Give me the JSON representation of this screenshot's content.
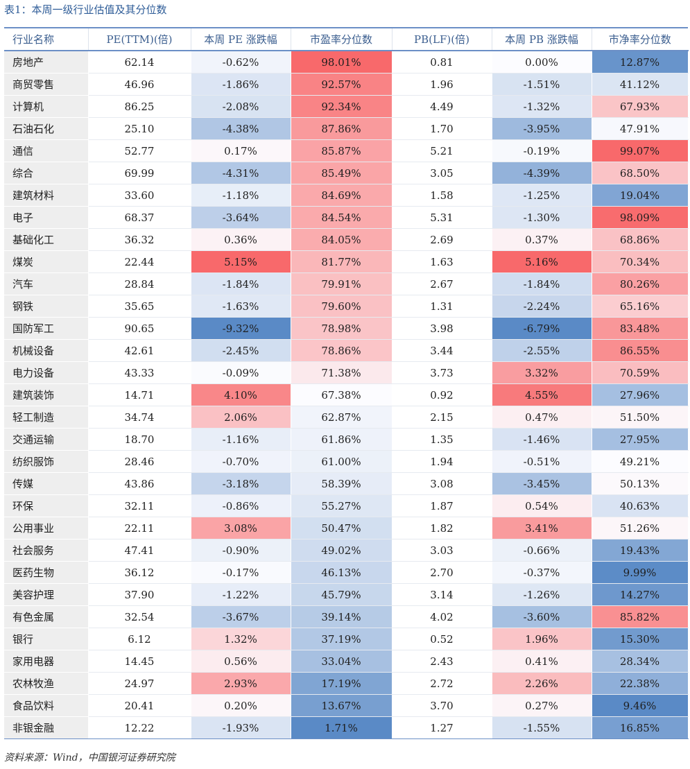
{
  "caption": "表1：本周一级行业估值及其分位数",
  "columns": [
    "行业名称",
    "PE(TTM)(倍)",
    "本周 PE 涨跌幅",
    "市盈率分位数",
    "PB(LF)(倍)",
    "本周 PB 涨跌幅",
    "市净率分位数"
  ],
  "rows": [
    [
      "房地产",
      "62.14",
      "-0.62%",
      "98.01%",
      "0.81",
      "0.00%",
      "12.87%"
    ],
    [
      "商贸零售",
      "46.96",
      "-1.86%",
      "92.57%",
      "1.96",
      "-1.51%",
      "41.12%"
    ],
    [
      "计算机",
      "86.25",
      "-2.08%",
      "92.34%",
      "4.49",
      "-1.32%",
      "67.93%"
    ],
    [
      "石油石化",
      "25.10",
      "-4.38%",
      "87.86%",
      "1.70",
      "-3.95%",
      "47.91%"
    ],
    [
      "通信",
      "52.77",
      "0.17%",
      "85.87%",
      "5.21",
      "-0.19%",
      "99.07%"
    ],
    [
      "综合",
      "69.99",
      "-4.31%",
      "85.49%",
      "3.05",
      "-4.39%",
      "68.50%"
    ],
    [
      "建筑材料",
      "33.60",
      "-1.18%",
      "84.69%",
      "1.58",
      "-1.25%",
      "19.04%"
    ],
    [
      "电子",
      "68.37",
      "-3.64%",
      "84.54%",
      "5.31",
      "-1.30%",
      "98.09%"
    ],
    [
      "基础化工",
      "36.32",
      "0.36%",
      "84.05%",
      "2.69",
      "0.37%",
      "68.86%"
    ],
    [
      "煤炭",
      "22.44",
      "5.15%",
      "81.77%",
      "1.63",
      "5.16%",
      "70.34%"
    ],
    [
      "汽车",
      "28.84",
      "-1.84%",
      "79.91%",
      "2.67",
      "-1.84%",
      "80.26%"
    ],
    [
      "钢铁",
      "35.65",
      "-1.63%",
      "79.60%",
      "1.31",
      "-2.24%",
      "65.16%"
    ],
    [
      "国防军工",
      "90.65",
      "-9.32%",
      "78.98%",
      "3.98",
      "-6.79%",
      "83.48%"
    ],
    [
      "机械设备",
      "42.61",
      "-2.45%",
      "78.86%",
      "3.44",
      "-2.55%",
      "86.55%"
    ],
    [
      "电力设备",
      "43.33",
      "-0.09%",
      "71.38%",
      "3.73",
      "3.32%",
      "70.59%"
    ],
    [
      "建筑装饰",
      "14.71",
      "4.10%",
      "67.38%",
      "0.92",
      "4.55%",
      "27.96%"
    ],
    [
      "轻工制造",
      "34.74",
      "2.06%",
      "62.87%",
      "2.15",
      "0.47%",
      "51.50%"
    ],
    [
      "交通运输",
      "18.70",
      "-1.16%",
      "61.86%",
      "1.35",
      "-1.46%",
      "27.95%"
    ],
    [
      "纺织服饰",
      "28.46",
      "-0.70%",
      "61.00%",
      "1.94",
      "-0.51%",
      "49.21%"
    ],
    [
      "传媒",
      "43.86",
      "-3.18%",
      "58.39%",
      "3.08",
      "-3.45%",
      "50.13%"
    ],
    [
      "环保",
      "32.11",
      "-0.86%",
      "55.27%",
      "1.87",
      "0.54%",
      "40.63%"
    ],
    [
      "公用事业",
      "22.11",
      "3.08%",
      "50.47%",
      "1.82",
      "3.41%",
      "51.26%"
    ],
    [
      "社会服务",
      "47.41",
      "-0.90%",
      "49.02%",
      "3.03",
      "-0.66%",
      "19.43%"
    ],
    [
      "医药生物",
      "36.12",
      "-0.17%",
      "46.13%",
      "2.70",
      "-0.37%",
      "9.99%"
    ],
    [
      "美容护理",
      "37.90",
      "-1.22%",
      "45.79%",
      "3.14",
      "-1.26%",
      "14.27%"
    ],
    [
      "有色金属",
      "32.54",
      "-3.67%",
      "39.14%",
      "4.02",
      "-3.60%",
      "85.82%"
    ],
    [
      "银行",
      "6.12",
      "1.32%",
      "37.19%",
      "0.52",
      "1.96%",
      "15.30%"
    ],
    [
      "家用电器",
      "14.45",
      "0.56%",
      "33.04%",
      "2.43",
      "0.41%",
      "28.34%"
    ],
    [
      "农林牧渔",
      "24.97",
      "2.93%",
      "17.19%",
      "2.72",
      "2.26%",
      "22.38%"
    ],
    [
      "食品饮料",
      "20.41",
      "0.20%",
      "13.67%",
      "3.70",
      "0.27%",
      "9.46%"
    ],
    [
      "非银金融",
      "12.22",
      "-1.93%",
      "1.71%",
      "1.27",
      "-1.55%",
      "16.85%"
    ]
  ],
  "source": "资料来源：Wind，中国银河证券研究院",
  "colors": {
    "red_strong": "#f8696b",
    "blue_strong": "#5a8ac6",
    "white": "#fcfcff",
    "header_text": "#3b5e8f",
    "rule": "#6b8fc6",
    "name_bg": "#eeeeee"
  }
}
